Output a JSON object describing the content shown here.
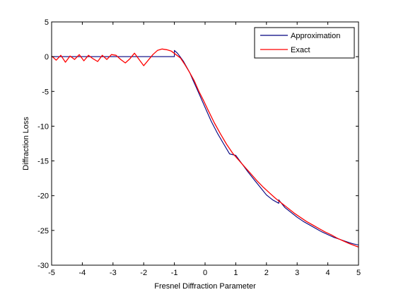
{
  "chart_data": {
    "type": "line",
    "title": "",
    "xlabel": "Fresnel Diffraction Parameter",
    "ylabel": "Diffraction Loss",
    "xlim": [
      -5,
      5
    ],
    "ylim": [
      -30,
      5
    ],
    "xticks": [
      -5,
      -4,
      -3,
      -2,
      -1,
      0,
      1,
      2,
      3,
      4,
      5
    ],
    "yticks": [
      5,
      0,
      -5,
      -10,
      -15,
      -20,
      -25,
      -30
    ],
    "grid": false,
    "legend_position": "top-right",
    "series": [
      {
        "name": "Approximation",
        "color": "#00007f",
        "x": [
          -5,
          -1,
          -1,
          -0.9,
          -0.8,
          -0.7,
          -0.6,
          -0.5,
          -0.4,
          -0.3,
          -0.2,
          -0.1,
          0,
          0.2,
          0.4,
          0.6,
          0.8,
          1.0,
          1.2,
          1.4,
          1.6,
          1.8,
          2.0,
          2.2,
          2.4,
          2.4,
          2.6,
          2.8,
          3.0,
          3.2,
          3.4,
          3.6,
          3.8,
          4.0,
          4.2,
          4.4,
          4.6,
          4.8,
          5.0
        ],
        "y": [
          0,
          0,
          0.9,
          0.5,
          -0.1,
          -0.7,
          -1.5,
          -2.3,
          -3.3,
          -4.3,
          -5.3,
          -6.3,
          -7.3,
          -9.3,
          -11.0,
          -12.5,
          -14.0,
          -14.2,
          -15.4,
          -16.6,
          -17.7,
          -18.8,
          -19.9,
          -20.6,
          -21.1,
          -20.6,
          -21.7,
          -22.4,
          -23.1,
          -23.7,
          -24.2,
          -24.7,
          -25.2,
          -25.6,
          -26.0,
          -26.3,
          -26.6,
          -26.9,
          -27.1
        ]
      },
      {
        "name": "Exact",
        "color": "#ff0000",
        "x": [
          -5,
          -4.85,
          -4.7,
          -4.55,
          -4.4,
          -4.25,
          -4.1,
          -3.95,
          -3.8,
          -3.65,
          -3.5,
          -3.35,
          -3.2,
          -3.05,
          -2.9,
          -2.75,
          -2.6,
          -2.45,
          -2.3,
          -2.15,
          -2.0,
          -1.85,
          -1.7,
          -1.55,
          -1.4,
          -1.25,
          -1.1,
          -0.95,
          -0.8,
          -0.65,
          -0.5,
          -0.35,
          -0.2,
          -0.05,
          0.1,
          0.3,
          0.5,
          0.7,
          0.9,
          1.1,
          1.3,
          1.5,
          1.7,
          1.9,
          2.1,
          2.3,
          2.5,
          2.7,
          2.9,
          3.1,
          3.3,
          3.5,
          3.7,
          3.9,
          4.1,
          4.3,
          4.5,
          4.7,
          5.0
        ],
        "y": [
          0.1,
          -0.5,
          0.2,
          -0.8,
          0.1,
          -0.4,
          0.3,
          -0.6,
          0.2,
          -0.3,
          -0.7,
          0.2,
          -0.4,
          0.3,
          0.2,
          -0.4,
          -0.9,
          -0.3,
          0.5,
          -0.4,
          -1.3,
          -0.5,
          0.3,
          0.9,
          1.1,
          1.0,
          0.8,
          0.3,
          -0.2,
          -1.2,
          -2.3,
          -3.5,
          -5.0,
          -6.3,
          -7.7,
          -9.5,
          -11.1,
          -12.6,
          -13.9,
          -14.9,
          -15.9,
          -16.9,
          -17.9,
          -18.8,
          -19.6,
          -20.4,
          -21.1,
          -21.8,
          -22.5,
          -23.1,
          -23.7,
          -24.2,
          -24.7,
          -25.2,
          -25.6,
          -26.1,
          -26.5,
          -26.9,
          -27.4
        ]
      }
    ]
  }
}
